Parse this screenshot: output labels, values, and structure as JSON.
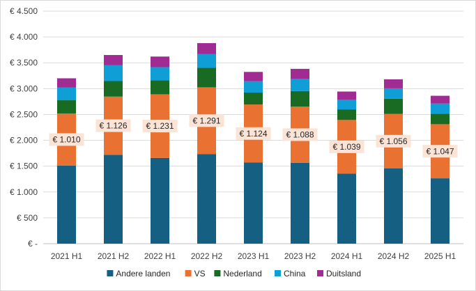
{
  "chart_data": {
    "type": "bar",
    "stacked": true,
    "title": "",
    "xlabel": "",
    "ylabel": "",
    "categories": [
      "2021 H1",
      "2021 H2",
      "2022 H1",
      "2022 H2",
      "2023 H1",
      "2023 H2",
      "2024 H1",
      "2024 H2",
      "2025 H1"
    ],
    "series": [
      {
        "name": "Andere landen",
        "color": "#156082",
        "values": [
          1510,
          1720,
          1660,
          1735,
          1570,
          1565,
          1355,
          1455,
          1265
        ]
      },
      {
        "name": "VS",
        "color": "#E97132",
        "values": [
          1010,
          1126,
          1231,
          1291,
          1124,
          1088,
          1039,
          1056,
          1047
        ]
      },
      {
        "name": "Nederland",
        "color": "#196B24",
        "values": [
          255,
          300,
          270,
          380,
          230,
          300,
          205,
          295,
          200
        ]
      },
      {
        "name": "China",
        "color": "#0F9ED5",
        "values": [
          250,
          310,
          255,
          265,
          220,
          235,
          190,
          200,
          200
        ]
      },
      {
        "name": "Duitsland",
        "color": "#A02B93",
        "values": [
          175,
          195,
          205,
          210,
          180,
          195,
          155,
          175,
          150
        ]
      }
    ],
    "data_labels": {
      "series": "VS",
      "texts": [
        "€ 1.010",
        "€ 1.126",
        "€ 1.231",
        "€ 1.291",
        "€ 1.124",
        "€ 1.088",
        "€ 1.039",
        "€ 1.056",
        "€ 1.047"
      ],
      "background": "#FBE3D6"
    },
    "y_ticks": [
      {
        "value": 0,
        "label": "€ -"
      },
      {
        "value": 500,
        "label": "€ 500"
      },
      {
        "value": 1000,
        "label": "€ 1.000"
      },
      {
        "value": 1500,
        "label": "€ 1.500"
      },
      {
        "value": 2000,
        "label": "€ 2.000"
      },
      {
        "value": 2500,
        "label": "€ 2.500"
      },
      {
        "value": 3000,
        "label": "€ 3.000"
      },
      {
        "value": 3500,
        "label": "€ 3.500"
      },
      {
        "value": 4000,
        "label": "€ 4.000"
      },
      {
        "value": 4500,
        "label": "€ 4.500"
      }
    ],
    "ylim": [
      0,
      4500
    ],
    "grid": true,
    "legend": "bottom"
  }
}
